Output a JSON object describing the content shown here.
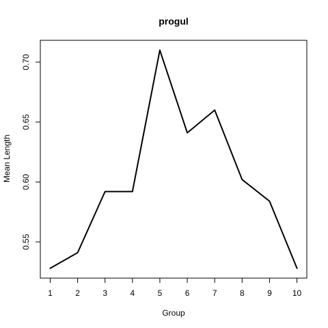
{
  "chart_data": {
    "type": "line",
    "title": "progul",
    "xlabel": "Group",
    "ylabel": "Mean Length",
    "x": [
      1,
      2,
      3,
      4,
      5,
      6,
      7,
      8,
      9,
      10
    ],
    "y": [
      0.528,
      0.541,
      0.592,
      0.592,
      0.71,
      0.641,
      0.66,
      0.602,
      0.584,
      0.528
    ],
    "xlim": [
      0.64,
      10.36
    ],
    "ylim": [
      0.5198,
      0.7182
    ],
    "x_ticks": [
      1,
      2,
      3,
      4,
      5,
      6,
      7,
      8,
      9,
      10
    ],
    "y_ticks": [
      0.55,
      0.6,
      0.65,
      0.7
    ],
    "y_tick_labels": [
      "0.55",
      "0.60",
      "0.65",
      "0.70"
    ],
    "grid": false,
    "legend": "none",
    "line_color": "#000000"
  }
}
